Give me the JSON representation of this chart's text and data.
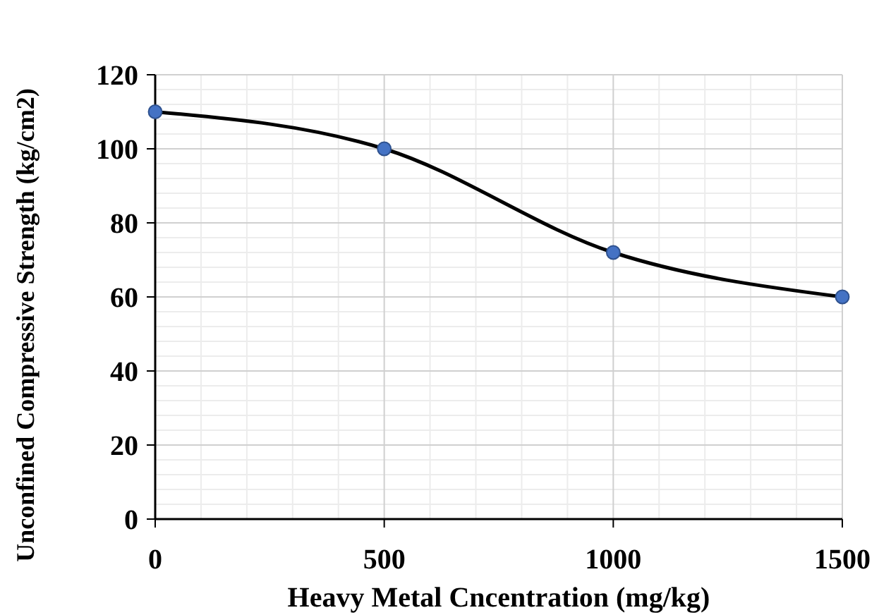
{
  "chart_data": {
    "type": "line",
    "xlabel": "Heavy Metal Cncentration (mg/kg)",
    "ylabel": "Unconfined Compressive Strength (kg/cm2)",
    "x": [
      0,
      500,
      1000,
      1500
    ],
    "series": [
      {
        "color": "#000000",
        "values": [
          110,
          100,
          72,
          60
        ]
      }
    ],
    "xlim": [
      0,
      1500
    ],
    "xticks": [
      0,
      500,
      1000,
      1500
    ],
    "ylim": [
      0,
      120
    ],
    "yticks": [
      0,
      20,
      40,
      60,
      80,
      100,
      120
    ],
    "grid": true,
    "marker": "circle",
    "line_style": "solid"
  }
}
